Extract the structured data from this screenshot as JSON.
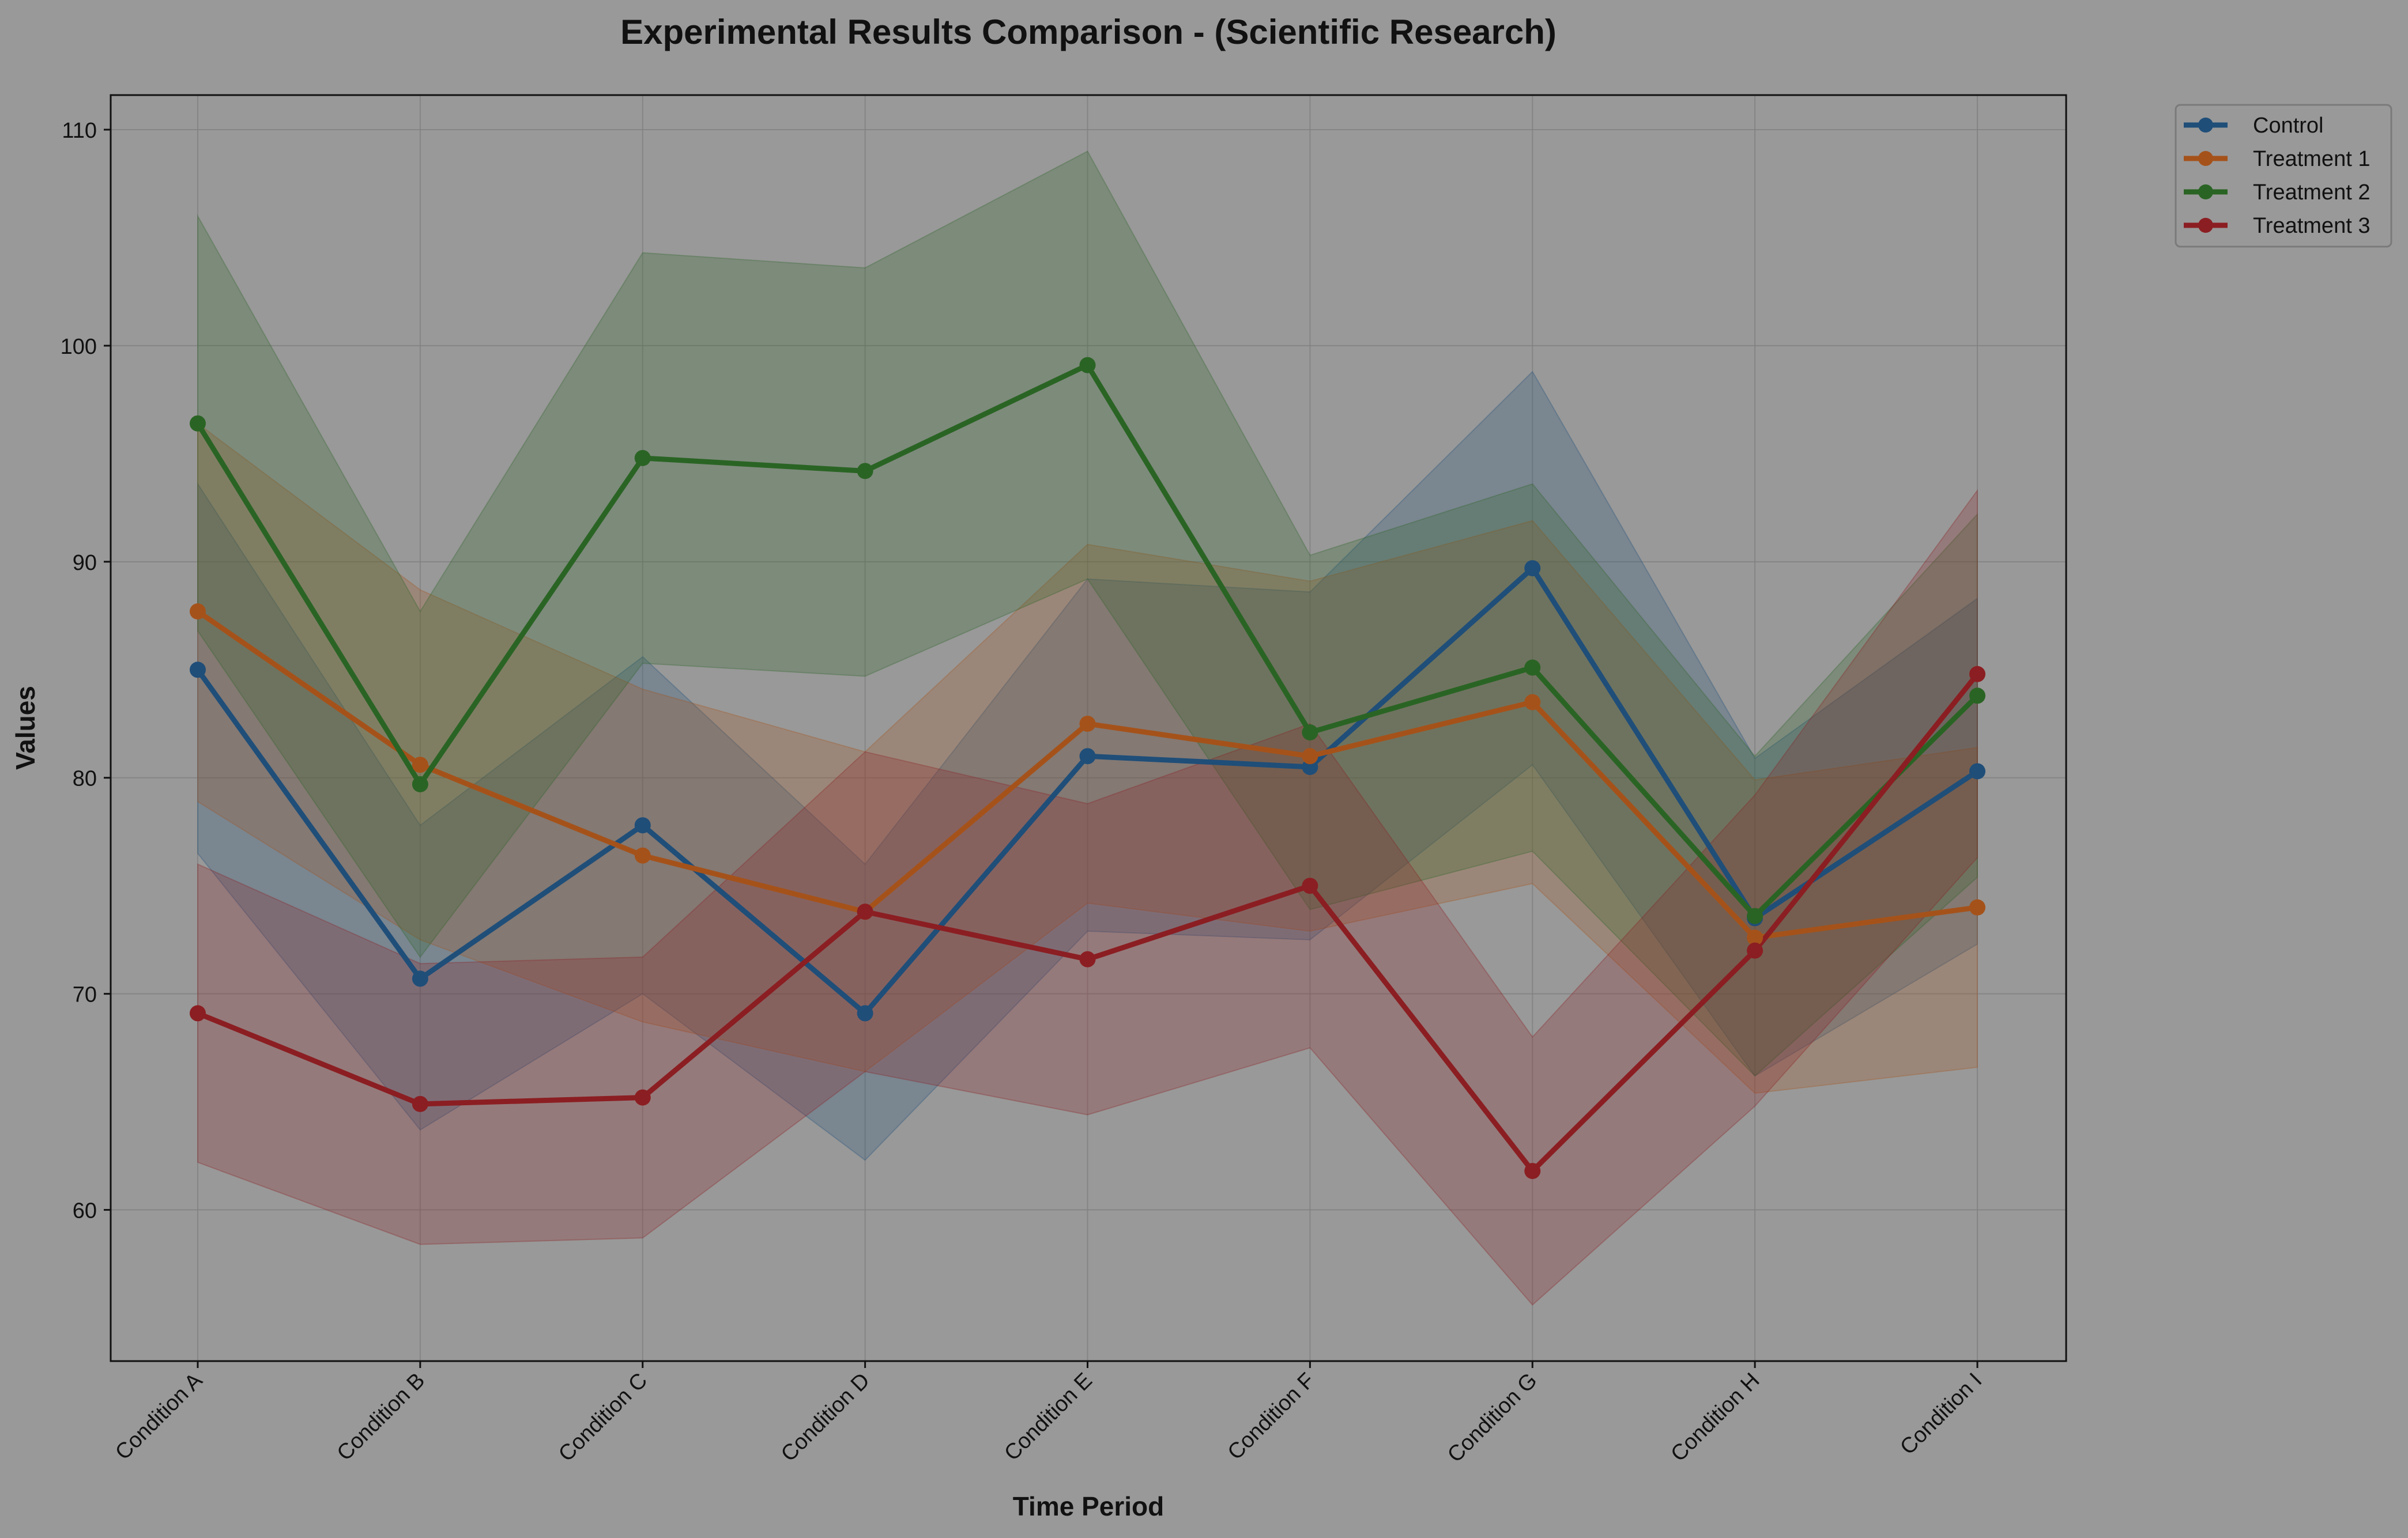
{
  "chart_data": {
    "type": "line",
    "title": "Experimental Results Comparison - (Scientific Research)",
    "xlabel": "Time Period",
    "ylabel": "Values",
    "categories": [
      "Condition A",
      "Condition B",
      "Condition C",
      "Condition D",
      "Condition E",
      "Condition F",
      "Condition G",
      "Condition H",
      "Condition I"
    ],
    "ylim": [
      53,
      111.6
    ],
    "yticks": [
      60,
      70,
      80,
      90,
      100,
      110
    ],
    "grid": true,
    "legend_position": "outside-top-right",
    "background_color": "#999999",
    "series": [
      {
        "name": "Control",
        "color": "#1f4e79",
        "values": [
          85.0,
          70.7,
          77.8,
          69.1,
          81.0,
          80.5,
          89.7,
          73.5,
          80.3
        ],
        "band_upper": [
          93.6,
          77.8,
          85.6,
          76.0,
          89.2,
          88.6,
          98.8,
          80.9,
          88.3
        ],
        "band_lower": [
          76.5,
          63.7,
          70.0,
          62.3,
          72.9,
          72.5,
          80.6,
          66.2,
          72.3
        ]
      },
      {
        "name": "Treatment 1",
        "color": "#a5521a",
        "values": [
          87.7,
          80.6,
          76.4,
          73.8,
          82.5,
          81.0,
          83.5,
          72.6,
          74.0
        ],
        "band_upper": [
          96.4,
          88.7,
          84.1,
          81.2,
          90.8,
          89.1,
          91.9,
          79.9,
          81.4
        ],
        "band_lower": [
          78.9,
          72.5,
          68.7,
          66.4,
          74.2,
          72.9,
          75.1,
          65.4,
          66.6
        ]
      },
      {
        "name": "Treatment 2",
        "color": "#2a6424",
        "values": [
          96.4,
          79.7,
          94.8,
          94.2,
          99.1,
          82.1,
          85.1,
          73.6,
          83.8
        ],
        "band_upper": [
          106.0,
          87.7,
          104.3,
          103.6,
          109.0,
          90.3,
          93.6,
          81.0,
          92.2
        ],
        "band_lower": [
          86.8,
          71.7,
          85.3,
          84.7,
          89.2,
          73.9,
          76.6,
          66.2,
          75.4
        ]
      },
      {
        "name": "Treatment 3",
        "color": "#8b1e22",
        "values": [
          69.1,
          64.9,
          65.2,
          73.8,
          71.6,
          75.0,
          61.8,
          72.0,
          84.8
        ],
        "band_upper": [
          76.0,
          71.4,
          71.7,
          81.2,
          78.8,
          82.5,
          68.0,
          79.2,
          93.3
        ],
        "band_lower": [
          62.2,
          58.4,
          58.7,
          66.4,
          64.4,
          67.5,
          55.6,
          64.8,
          76.3
        ]
      }
    ]
  }
}
